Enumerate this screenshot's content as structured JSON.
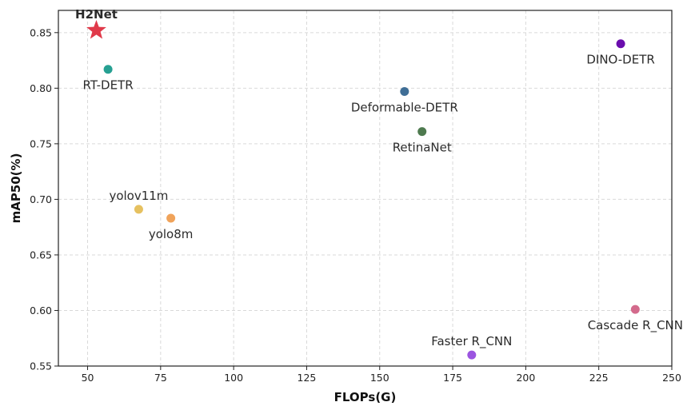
{
  "chart_data": {
    "type": "scatter",
    "title": "",
    "xlabel": "FLOPs(G)",
    "ylabel": "mAP50(%)",
    "xlim": [
      40,
      250
    ],
    "ylim": [
      0.55,
      0.87
    ],
    "xticks": [
      50,
      75,
      100,
      125,
      150,
      175,
      200,
      225,
      250
    ],
    "yticks": [
      "0.55",
      "0.60",
      "0.65",
      "0.70",
      "0.75",
      "0.80",
      "0.85"
    ],
    "grid": true,
    "points": [
      {
        "name": "H2Net",
        "x": 53,
        "y": 0.852,
        "color": "#e03a4a",
        "marker": "star",
        "label_pos": "above",
        "bold": true
      },
      {
        "name": "RT-DETR",
        "x": 57,
        "y": 0.817,
        "color": "#26a092",
        "marker": "circle",
        "label_pos": "below"
      },
      {
        "name": "DINO-DETR",
        "x": 232.5,
        "y": 0.84,
        "color": "#6a0dad",
        "marker": "circle",
        "label_pos": "below"
      },
      {
        "name": "Deformable-DETR",
        "x": 158.5,
        "y": 0.797,
        "color": "#3f6e96",
        "marker": "circle",
        "label_pos": "below"
      },
      {
        "name": "RetinaNet",
        "x": 164.5,
        "y": 0.761,
        "color": "#4e7a4f",
        "marker": "circle",
        "label_pos": "below"
      },
      {
        "name": "yolov11m",
        "x": 67.5,
        "y": 0.691,
        "color": "#e6c160",
        "marker": "circle",
        "label_pos": "above"
      },
      {
        "name": "yolo8m",
        "x": 78.5,
        "y": 0.683,
        "color": "#f0a35a",
        "marker": "circle",
        "label_pos": "below"
      },
      {
        "name": "Cascade R_CNN",
        "x": 237.5,
        "y": 0.601,
        "color": "#d36a8c",
        "marker": "circle",
        "label_pos": "below"
      },
      {
        "name": "Faster R_CNN",
        "x": 181.5,
        "y": 0.56,
        "color": "#9b55e0",
        "marker": "circle",
        "label_pos": "above"
      }
    ]
  }
}
